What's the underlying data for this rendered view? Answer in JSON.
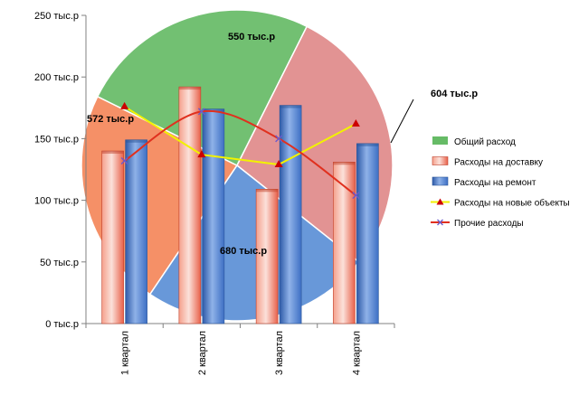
{
  "chart_data": [
    {
      "type": "pie",
      "series": [
        {
          "name": "Общий расход",
          "slices": [
            {
              "value": 550,
              "label": "550 тыс.р",
              "color": "#f4875a"
            },
            {
              "value": 604,
              "label": "604 тыс.р",
              "color": "#66bb66"
            },
            {
              "value": 680,
              "label": "680 тыс.р",
              "color": "#e08a8a"
            },
            {
              "value": 572,
              "label": "572 тыс.р",
              "color": "#5b8fd6"
            }
          ]
        }
      ]
    },
    {
      "type": "bar",
      "categories": [
        "1 квартал",
        "2 квартал",
        "3 квартал",
        "4 квартал"
      ],
      "ylim": [
        0,
        250
      ],
      "yticks": [
        "0 тыс.р",
        "50 тыс.р",
        "100 тыс.р",
        "150 тыс.р",
        "200 тыс.р",
        "250 тыс.р"
      ],
      "ytick_values": [
        0,
        50,
        100,
        150,
        200,
        250
      ],
      "series": [
        {
          "name": "Расходы на доставку",
          "type": "bar",
          "values": [
            140,
            192,
            109,
            131
          ],
          "color": "#e8614a"
        },
        {
          "name": "Расходы на ремонт",
          "type": "bar",
          "values": [
            149,
            174,
            177,
            146
          ],
          "color": "#3d6fc4"
        },
        {
          "name": "Расходы на новые объекты",
          "type": "line",
          "values": [
            176,
            137,
            129,
            162
          ],
          "color": "#f2f200",
          "marker_color": "#cc0000"
        },
        {
          "name": "Прочие расходы",
          "type": "line",
          "smooth": true,
          "values": [
            132,
            172,
            150,
            104
          ],
          "color": "#e0301e"
        }
      ],
      "legend": {
        "position": "right",
        "items": [
          "Общий расход",
          "Расходы на доставку",
          "Расходы на ремонт",
          "Расходы на новые объекты",
          "Прочие расходы"
        ]
      },
      "grid": false
    }
  ]
}
